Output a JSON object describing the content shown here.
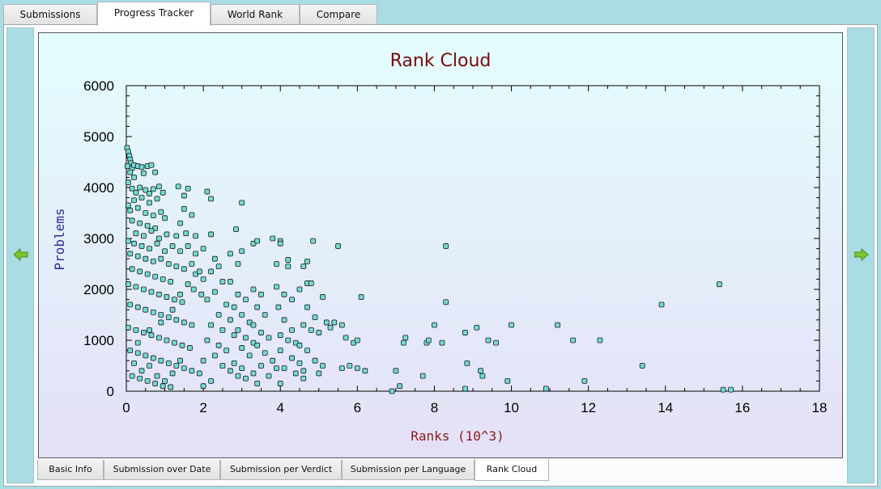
{
  "top_tabs": [
    {
      "label": "Submissions"
    },
    {
      "label": "Progress Tracker",
      "active": true
    },
    {
      "label": "World Rank"
    },
    {
      "label": "Compare"
    }
  ],
  "bottom_tabs": [
    {
      "label": "Basic Info"
    },
    {
      "label": "Submission over Date"
    },
    {
      "label": "Submission per Verdict"
    },
    {
      "label": "Submission per Language"
    },
    {
      "label": "Rank Cloud",
      "active": true
    }
  ],
  "nav": {
    "prev_icon": "left-arrow-icon",
    "next_icon": "right-arrow-icon",
    "icon_color": "#7cc431"
  },
  "colors": {
    "title": "#7a0a0a",
    "axis_label": "#2b2b9a",
    "xaxis_label": "#8b1a1a",
    "point_fill": "#73d9d4",
    "point_stroke": "#1a1a1a"
  },
  "chart_data": {
    "type": "scatter",
    "title": "Rank Cloud",
    "xlabel": "Ranks (10^3)",
    "ylabel": "Problems",
    "xlim": [
      0,
      18
    ],
    "ylim": [
      0,
      6000
    ],
    "x_ticks": [
      0,
      2,
      4,
      6,
      8,
      10,
      12,
      14,
      16,
      18
    ],
    "y_ticks": [
      0,
      1000,
      2000,
      3000,
      4000,
      5000,
      6000
    ],
    "grid": false,
    "points": [
      [
        0.02,
        4780
      ],
      [
        0.05,
        4700
      ],
      [
        0.08,
        4620
      ],
      [
        0.1,
        4550
      ],
      [
        0.12,
        4480
      ],
      [
        0.03,
        4420
      ],
      [
        0.15,
        4380
      ],
      [
        0.2,
        4440
      ],
      [
        0.3,
        4420
      ],
      [
        0.4,
        4400
      ],
      [
        0.45,
        4280
      ],
      [
        0.55,
        4420
      ],
      [
        0.65,
        4440
      ],
      [
        0.75,
        4300
      ],
      [
        0.1,
        4300
      ],
      [
        0.2,
        4200
      ],
      [
        0.05,
        4100
      ],
      [
        0.15,
        3980
      ],
      [
        0.25,
        3900
      ],
      [
        0.35,
        4000
      ],
      [
        0.5,
        3950
      ],
      [
        0.6,
        3880
      ],
      [
        0.7,
        3970
      ],
      [
        0.85,
        4020
      ],
      [
        0.95,
        3900
      ],
      [
        0.4,
        3800
      ],
      [
        0.2,
        3750
      ],
      [
        0.6,
        3700
      ],
      [
        0.8,
        3780
      ],
      [
        0.05,
        3650
      ],
      [
        0.1,
        3550
      ],
      [
        0.3,
        3600
      ],
      [
        0.5,
        3500
      ],
      [
        0.7,
        3450
      ],
      [
        0.9,
        3520
      ],
      [
        1.0,
        3400
      ],
      [
        0.15,
        3350
      ],
      [
        0.35,
        3300
      ],
      [
        0.55,
        3250
      ],
      [
        0.75,
        3200
      ],
      [
        0.25,
        3100
      ],
      [
        0.45,
        3050
      ],
      [
        0.65,
        3150
      ],
      [
        0.85,
        3000
      ],
      [
        1.05,
        3080
      ],
      [
        0.05,
        2950
      ],
      [
        0.2,
        2900
      ],
      [
        0.4,
        2850
      ],
      [
        0.6,
        2800
      ],
      [
        0.8,
        2900
      ],
      [
        1.0,
        2750
      ],
      [
        1.2,
        2850
      ],
      [
        0.1,
        2700
      ],
      [
        0.3,
        2650
      ],
      [
        0.5,
        2600
      ],
      [
        0.7,
        2550
      ],
      [
        0.9,
        2600
      ],
      [
        1.1,
        2500
      ],
      [
        1.3,
        2450
      ],
      [
        0.15,
        2400
      ],
      [
        0.35,
        2350
      ],
      [
        0.55,
        2300
      ],
      [
        0.75,
        2250
      ],
      [
        0.95,
        2200
      ],
      [
        1.15,
        2150
      ],
      [
        0.05,
        2100
      ],
      [
        0.25,
        2050
      ],
      [
        0.45,
        2000
      ],
      [
        0.65,
        1950
      ],
      [
        0.85,
        1900
      ],
      [
        1.05,
        1850
      ],
      [
        1.25,
        1800
      ],
      [
        1.45,
        1750
      ],
      [
        0.1,
        1700
      ],
      [
        0.3,
        1650
      ],
      [
        0.5,
        1600
      ],
      [
        0.7,
        1550
      ],
      [
        0.9,
        1500
      ],
      [
        1.1,
        1450
      ],
      [
        1.3,
        1400
      ],
      [
        1.5,
        1350
      ],
      [
        1.7,
        1300
      ],
      [
        0.05,
        1250
      ],
      [
        0.25,
        1200
      ],
      [
        0.45,
        1150
      ],
      [
        0.65,
        1100
      ],
      [
        0.85,
        1050
      ],
      [
        1.05,
        1000
      ],
      [
        1.25,
        950
      ],
      [
        1.45,
        900
      ],
      [
        1.65,
        850
      ],
      [
        0.1,
        800
      ],
      [
        0.3,
        750
      ],
      [
        0.5,
        700
      ],
      [
        0.7,
        650
      ],
      [
        0.9,
        600
      ],
      [
        1.1,
        550
      ],
      [
        1.3,
        500
      ],
      [
        1.5,
        450
      ],
      [
        1.7,
        400
      ],
      [
        1.9,
        350
      ],
      [
        0.15,
        300
      ],
      [
        0.35,
        250
      ],
      [
        0.55,
        200
      ],
      [
        0.75,
        150
      ],
      [
        0.95,
        100
      ],
      [
        1.15,
        80
      ],
      [
        0.4,
        400
      ],
      [
        0.6,
        500
      ],
      [
        0.8,
        300
      ],
      [
        1.0,
        200
      ],
      [
        1.2,
        350
      ],
      [
        1.4,
        600
      ],
      [
        0.2,
        550
      ],
      [
        0.3,
        950
      ],
      [
        0.6,
        1200
      ],
      [
        0.9,
        1350
      ],
      [
        1.2,
        1600
      ],
      [
        1.4,
        1900
      ],
      [
        1.6,
        2100
      ],
      [
        1.8,
        2300
      ],
      [
        1.35,
        4020
      ],
      [
        1.6,
        3980
      ],
      [
        1.5,
        3840
      ],
      [
        1.5,
        3580
      ],
      [
        1.7,
        3460
      ],
      [
        1.4,
        3300
      ],
      [
        1.3,
        3050
      ],
      [
        1.55,
        3100
      ],
      [
        1.8,
        3050
      ],
      [
        1.6,
        2850
      ],
      [
        1.4,
        2750
      ],
      [
        1.8,
        2700
      ],
      [
        1.7,
        2500
      ],
      [
        1.5,
        2400
      ],
      [
        1.9,
        2350
      ],
      [
        2.0,
        2200
      ],
      [
        1.75,
        2000
      ],
      [
        1.95,
        1900
      ],
      [
        2.1,
        3920
      ],
      [
        2.2,
        3780
      ],
      [
        2.2,
        3080
      ],
      [
        2.0,
        2800
      ],
      [
        2.3,
        2600
      ],
      [
        2.4,
        2450
      ],
      [
        2.2,
        2350
      ],
      [
        2.5,
        2150
      ],
      [
        2.3,
        1950
      ],
      [
        2.1,
        1800
      ],
      [
        2.6,
        1700
      ],
      [
        2.4,
        1500
      ],
      [
        2.7,
        1400
      ],
      [
        2.2,
        1300
      ],
      [
        2.5,
        1200
      ],
      [
        2.8,
        1100
      ],
      [
        2.1,
        1000
      ],
      [
        2.4,
        900
      ],
      [
        2.6,
        800
      ],
      [
        2.3,
        700
      ],
      [
        2.0,
        600
      ],
      [
        2.5,
        500
      ],
      [
        2.7,
        400
      ],
      [
        2.9,
        300
      ],
      [
        2.2,
        200
      ],
      [
        2.0,
        100
      ],
      [
        3.0,
        3700
      ],
      [
        2.85,
        3180
      ],
      [
        2.7,
        2700
      ],
      [
        3.0,
        2750
      ],
      [
        2.9,
        2500
      ],
      [
        2.7,
        2150
      ],
      [
        2.9,
        1900
      ],
      [
        3.1,
        1800
      ],
      [
        2.8,
        1650
      ],
      [
        3.0,
        1500
      ],
      [
        3.2,
        1350
      ],
      [
        2.9,
        1200
      ],
      [
        3.1,
        1050
      ],
      [
        3.3,
        950
      ],
      [
        3.0,
        850
      ],
      [
        3.2,
        700
      ],
      [
        2.8,
        550
      ],
      [
        3.0,
        450
      ],
      [
        3.3,
        350
      ],
      [
        3.1,
        250
      ],
      [
        3.3,
        2900
      ],
      [
        3.4,
        2950
      ],
      [
        3.3,
        2000
      ],
      [
        3.5,
        1900
      ],
      [
        3.4,
        1650
      ],
      [
        3.6,
        1500
      ],
      [
        3.3,
        1300
      ],
      [
        3.5,
        1150
      ],
      [
        3.7,
        1050
      ],
      [
        3.4,
        900
      ],
      [
        3.6,
        750
      ],
      [
        3.8,
        600
      ],
      [
        3.5,
        500
      ],
      [
        3.9,
        450
      ],
      [
        3.7,
        300
      ],
      [
        3.4,
        150
      ],
      [
        3.8,
        3000
      ],
      [
        4.0,
        2950
      ],
      [
        4.0,
        2900
      ],
      [
        3.9,
        2500
      ],
      [
        4.2,
        2580
      ],
      [
        4.2,
        2450
      ],
      [
        3.9,
        2050
      ],
      [
        4.1,
        1900
      ],
      [
        4.3,
        1800
      ],
      [
        3.95,
        1650
      ],
      [
        4.1,
        1400
      ],
      [
        4.3,
        1200
      ],
      [
        4.0,
        1100
      ],
      [
        4.2,
        1000
      ],
      [
        4.4,
        950
      ],
      [
        4.0,
        800
      ],
      [
        4.3,
        650
      ],
      [
        4.5,
        550
      ],
      [
        4.1,
        450
      ],
      [
        4.4,
        350
      ],
      [
        4.6,
        250
      ],
      [
        4.0,
        150
      ],
      [
        4.7,
        2550
      ],
      [
        4.6,
        2450
      ],
      [
        4.7,
        2120
      ],
      [
        4.8,
        2120
      ],
      [
        4.5,
        2000
      ],
      [
        4.7,
        1650
      ],
      [
        4.9,
        1450
      ],
      [
        4.6,
        1300
      ],
      [
        4.8,
        1200
      ],
      [
        5.0,
        1150
      ],
      [
        4.5,
        900
      ],
      [
        4.7,
        800
      ],
      [
        4.9,
        600
      ],
      [
        5.1,
        500
      ],
      [
        4.6,
        400
      ],
      [
        5.0,
        350
      ],
      [
        4.85,
        2950
      ],
      [
        5.1,
        1850
      ],
      [
        5.2,
        1350
      ],
      [
        5.3,
        1250
      ],
      [
        5.4,
        1350
      ],
      [
        5.6,
        1300
      ],
      [
        5.5,
        2850
      ],
      [
        5.7,
        1050
      ],
      [
        5.9,
        950
      ],
      [
        6.0,
        1000
      ],
      [
        5.6,
        450
      ],
      [
        5.8,
        500
      ],
      [
        6.0,
        450
      ],
      [
        6.1,
        1850
      ],
      [
        6.2,
        400
      ],
      [
        6.9,
        0
      ],
      [
        7.1,
        100
      ],
      [
        7.0,
        400
      ],
      [
        7.2,
        950
      ],
      [
        7.25,
        1050
      ],
      [
        7.7,
        300
      ],
      [
        7.8,
        950
      ],
      [
        7.85,
        1000
      ],
      [
        8.0,
        1300
      ],
      [
        8.2,
        950
      ],
      [
        8.3,
        2850
      ],
      [
        8.3,
        1750
      ],
      [
        8.8,
        50
      ],
      [
        8.8,
        1150
      ],
      [
        8.85,
        550
      ],
      [
        9.1,
        1250
      ],
      [
        9.2,
        400
      ],
      [
        9.25,
        300
      ],
      [
        9.4,
        1000
      ],
      [
        9.6,
        950
      ],
      [
        9.9,
        200
      ],
      [
        10.0,
        1300
      ],
      [
        10.9,
        50
      ],
      [
        11.2,
        1300
      ],
      [
        11.6,
        1000
      ],
      [
        11.9,
        200
      ],
      [
        12.3,
        1000
      ],
      [
        13.4,
        500
      ],
      [
        13.9,
        1700
      ],
      [
        15.4,
        2100
      ],
      [
        15.5,
        30
      ],
      [
        15.7,
        30
      ]
    ]
  }
}
